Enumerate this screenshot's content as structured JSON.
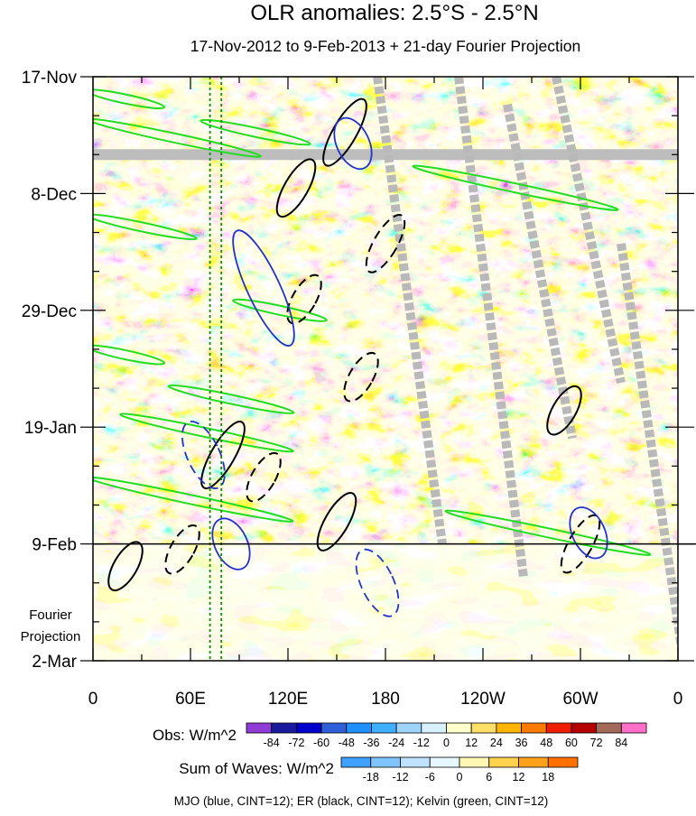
{
  "chart_data": {
    "type": "heatmap",
    "title": "OLR anomalies: 2.5°S - 2.5°N",
    "subtitle": "17-Nov-2012 to 9-Feb-2013 + 21-day Fourier Projection",
    "x_ticks": [
      "0",
      "60E",
      "120E",
      "180",
      "120W",
      "60W",
      "0"
    ],
    "x_tick_lons": [
      0,
      60,
      120,
      180,
      240,
      300,
      360
    ],
    "y_ticks": [
      "17-Nov",
      "8-Dec",
      "29-Dec",
      "19-Jan",
      "9-Feb",
      "2-Mar"
    ],
    "y_tick_days": [
      0,
      21,
      42,
      63,
      84,
      105
    ],
    "projection_label_line1": "Fourier",
    "projection_label_line2": "Projection",
    "observed_end_day": 84,
    "projection_end_day": 105,
    "missing_data_row_day": 14,
    "reference_lons": [
      72,
      79
    ],
    "obs_colorbar": {
      "label": "Obs: W/m^2",
      "levels": [
        "-84",
        "-72",
        "-60",
        "-48",
        "-36",
        "-24",
        "-12",
        "0",
        "12",
        "24",
        "36",
        "48",
        "60",
        "72",
        "84"
      ],
      "colors": [
        "#8f3bd6",
        "#1a1a9e",
        "#0000cc",
        "#2f5fd8",
        "#1e90ff",
        "#3fb0ff",
        "#9fd4ff",
        "#d8f1ff",
        "#ffffcc",
        "#ffe066",
        "#ffb400",
        "#ff7a00",
        "#f01e00",
        "#b50000",
        "#a36a5a",
        "#ff6ec7"
      ]
    },
    "waves_colorbar": {
      "label": "Sum of Waves: W/m^2",
      "levels": [
        "-18",
        "-12",
        "-6",
        "0",
        "6",
        "12",
        "18"
      ],
      "colors": [
        "#3fa0ff",
        "#7fc4ff",
        "#bfe2ff",
        "#e6f7ff",
        "#fff7b3",
        "#ffd24d",
        "#ffa21a",
        "#ff7000"
      ]
    },
    "footnote": "MJO (blue, CINT=12); ER (black, CINT=12); Kelvin (green, CINT=12)",
    "grid": false
  }
}
